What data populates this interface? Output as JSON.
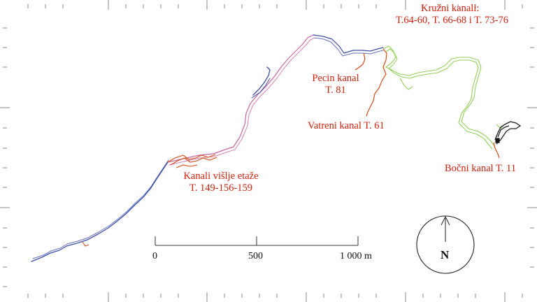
{
  "map": {
    "labels": {
      "kruzni_line1": "Kružni kanali:",
      "kruzni_line2": "T.64-60, T. 66-68 i T. 73-76",
      "pecin_line1": "Pecin kanal",
      "pecin_line2": "T. 81",
      "vatreni": "Vatreni kanal T. 61",
      "bocni": "Bočni kanal T. 11",
      "kanali_line1": "Kanali višlje etaže",
      "kanali_line2": "T. 149-156-159"
    },
    "scale_bar": {
      "ticks": [
        "0",
        "500",
        "1 000 m"
      ]
    },
    "north_arrow": {
      "letter": "N"
    },
    "colors": {
      "main_passage": "#3d4ea8",
      "upper_level": "#c9669f",
      "side_channel": "#d84a16",
      "circular_channels": "#94cf5a",
      "end_section": "#222222",
      "label_text": "#d2210d"
    }
  }
}
